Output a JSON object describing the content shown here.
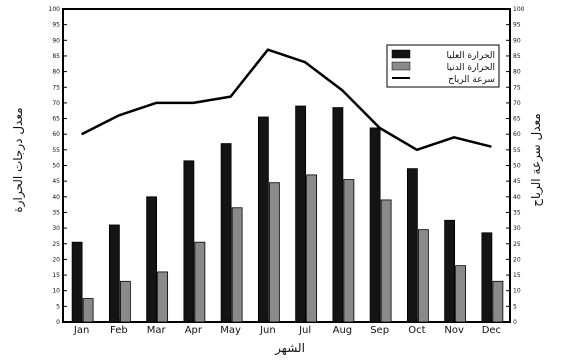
{
  "chart_data": {
    "type": "bar",
    "categories": [
      "Jan",
      "Feb",
      "Mar",
      "Apr",
      "May",
      "Jun",
      "Jul",
      "Aug",
      "Sep",
      "Oct",
      "Nov",
      "Dec"
    ],
    "series": [
      {
        "name": "الحرارة العليا",
        "kind": "bar",
        "axis": "left",
        "color": "#141414",
        "values": [
          25.5,
          31,
          40,
          51.5,
          57,
          65.5,
          69,
          68.5,
          62,
          49,
          32.5,
          28.5
        ]
      },
      {
        "name": "الحرارة الدنيا",
        "kind": "bar",
        "axis": "left",
        "color": "#8a8a8a",
        "values": [
          7.5,
          13,
          16,
          25.5,
          36.5,
          44.5,
          47,
          45.5,
          39,
          29.5,
          18,
          13
        ]
      },
      {
        "name": "سرعة الرياح",
        "kind": "line",
        "axis": "right",
        "color": "#000000",
        "values": [
          60,
          66,
          70,
          70,
          72,
          87,
          83,
          74,
          62,
          55,
          59,
          56
        ]
      }
    ],
    "xlabel": "الشهر",
    "ylabel": "معدل درجات الحرارة",
    "ylabel_right": "معدل سرعة الرياح",
    "ylim": [
      0,
      100
    ],
    "ylim_right": [
      0,
      100
    ],
    "yticks": [
      0,
      5,
      10,
      15,
      20,
      25,
      30,
      35,
      40,
      45,
      50,
      55,
      60,
      65,
      70,
      75,
      80,
      85,
      90,
      95,
      100
    ],
    "yticks_right": [
      0,
      5,
      10,
      15,
      20,
      25,
      30,
      35,
      40,
      45,
      50,
      55,
      60,
      65,
      70,
      75,
      80,
      85,
      90,
      95,
      100
    ],
    "legend": "top-right",
    "grid": false
  }
}
